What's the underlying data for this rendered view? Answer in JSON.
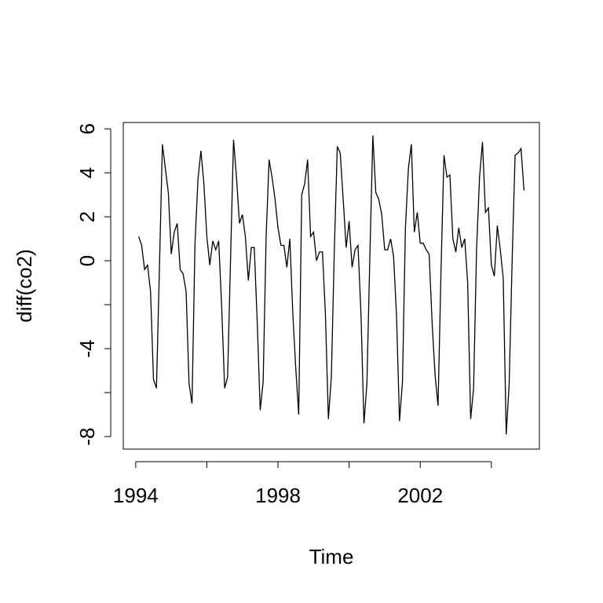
{
  "chart_data": {
    "type": "line",
    "x_label": "Time",
    "y_label": "diff(co2)",
    "x": [
      1994.083,
      1994.167,
      1994.25,
      1994.333,
      1994.417,
      1994.5,
      1994.583,
      1994.667,
      1994.75,
      1994.833,
      1994.917,
      1995,
      1995.083,
      1995.167,
      1995.25,
      1995.333,
      1995.417,
      1995.5,
      1995.583,
      1995.667,
      1995.75,
      1995.833,
      1995.917,
      1996,
      1996.083,
      1996.167,
      1996.25,
      1996.333,
      1996.417,
      1996.5,
      1996.583,
      1996.667,
      1996.75,
      1996.833,
      1996.917,
      1997,
      1997.083,
      1997.167,
      1997.25,
      1997.333,
      1997.417,
      1997.5,
      1997.583,
      1997.667,
      1997.75,
      1997.833,
      1997.917,
      1998,
      1998.083,
      1998.167,
      1998.25,
      1998.333,
      1998.417,
      1998.5,
      1998.583,
      1998.667,
      1998.75,
      1998.833,
      1998.917,
      1999,
      1999.083,
      1999.167,
      1999.25,
      1999.333,
      1999.417,
      1999.5,
      1999.583,
      1999.667,
      1999.75,
      1999.833,
      1999.917,
      2000,
      2000.083,
      2000.167,
      2000.25,
      2000.333,
      2000.417,
      2000.5,
      2000.583,
      2000.667,
      2000.75,
      2000.833,
      2000.917,
      2001,
      2001.083,
      2001.167,
      2001.25,
      2001.333,
      2001.417,
      2001.5,
      2001.583,
      2001.667,
      2001.75,
      2001.833,
      2001.917,
      2002,
      2002.083,
      2002.167,
      2002.25,
      2002.333,
      2002.417,
      2002.5,
      2002.583,
      2002.667,
      2002.75,
      2002.833,
      2002.917,
      2003,
      2003.083,
      2003.167,
      2003.25,
      2003.333,
      2003.417,
      2003.5,
      2003.583,
      2003.667,
      2003.75,
      2003.833,
      2003.917,
      2004,
      2004.083,
      2004.167,
      2004.25,
      2004.333,
      2004.417,
      2004.5,
      2004.583,
      2004.667,
      2004.75,
      2004.833,
      2004.917
    ],
    "values": [
      1.1,
      0.7,
      -0.4,
      -0.2,
      -1.4,
      -5.4,
      -5.8,
      -0.3,
      5.3,
      4.2,
      3.1,
      0.3,
      1.3,
      1.7,
      -0.4,
      -0.6,
      -1.4,
      -5.6,
      -6.5,
      0.8,
      3.7,
      5.0,
      3.5,
      1.1,
      -0.2,
      0.9,
      0.5,
      0.9,
      -2.1,
      -5.8,
      -5.3,
      0.1,
      5.5,
      3.8,
      1.7,
      2.1,
      1.1,
      -0.9,
      0.6,
      0.6,
      -2.8,
      -6.8,
      -5.5,
      1.1,
      4.6,
      3.8,
      2.8,
      1.5,
      0.7,
      0.7,
      -0.3,
      1.0,
      -2.4,
      -4.9,
      -7.0,
      3.0,
      3.5,
      4.6,
      1.1,
      1.3,
      0.0,
      0.4,
      0.4,
      -2.4,
      -7.2,
      -5.3,
      0.4,
      5.2,
      4.9,
      2.8,
      0.6,
      1.8,
      -0.3,
      0.5,
      0.7,
      -2.4,
      -7.4,
      -5.6,
      0.2,
      5.7,
      3.1,
      2.8,
      2.1,
      0.5,
      0.5,
      1.0,
      0.2,
      -2.5,
      -7.3,
      -5.5,
      1.5,
      4.2,
      5.3,
      1.3,
      2.2,
      0.8,
      0.8,
      0.5,
      0.3,
      -2.8,
      -5.2,
      -6.6,
      -0.5,
      4.8,
      3.8,
      3.9,
      1.0,
      0.4,
      1.5,
      0.6,
      1.0,
      -1.0,
      -7.2,
      -5.8,
      0.5,
      3.8,
      5.4,
      2.2,
      2.4,
      -0.2,
      -0.7,
      1.6,
      0.5,
      -0.8,
      -7.9,
      -5.6,
      0.0,
      4.8,
      4.9,
      5.1,
      3.2
    ],
    "color": "#000000",
    "xlim": [
      1993.65,
      2005.35
    ],
    "ylim": [
      -8.57,
      6.29
    ],
    "xticks": [
      1994,
      {
        "value": 1996,
        "label": null
      },
      1998,
      {
        "value": 2000,
        "label": null
      },
      2002,
      {
        "value": 2004,
        "label": null
      }
    ],
    "yticks": [
      -8,
      {
        "value": -6,
        "label": null
      },
      -4,
      {
        "value": -2,
        "label": null
      },
      0,
      2,
      4,
      6
    ]
  }
}
